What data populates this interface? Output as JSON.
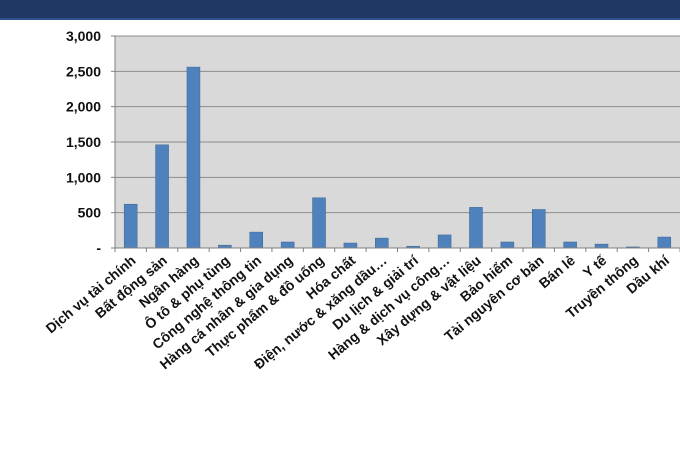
{
  "chart_data": {
    "type": "bar",
    "categories": [
      "Dịch vụ tài chính",
      "Bất động sản",
      "Ngân hàng",
      "Ô tô & phụ tùng",
      "Công nghệ thông tin",
      "Hàng cá nhân & gia dụng",
      "Thực phẩm & đồ uống",
      "Hóa chất",
      "Điện, nước & xăng dầu…",
      "Du lịch & giải trí",
      "Hàng & dịch vụ công…",
      "Xây dựng & vật liệu",
      "Bảo hiểm",
      "Tài nguyên cơ bản",
      "Bán lẻ",
      "Y tế",
      "Truyền thông",
      "Dầu khí"
    ],
    "values": [
      620,
      1460,
      2560,
      40,
      225,
      85,
      710,
      70,
      140,
      25,
      185,
      575,
      85,
      545,
      85,
      55,
      15,
      155
    ],
    "ylim": [
      0,
      3000
    ],
    "yticks": [
      0,
      500,
      1000,
      1500,
      2000,
      2500,
      3000
    ],
    "ytick_labels": [
      "-",
      "500",
      "1,000",
      "1,500",
      "2,000",
      "2,500",
      "3,000"
    ],
    "bar_color": "#4f81bd",
    "plot_background": "#d9d9d9",
    "grid": true,
    "legend": "none",
    "title": "",
    "xlabel": "",
    "ylabel": ""
  },
  "colors": {
    "header_bar": "#1f3864"
  }
}
